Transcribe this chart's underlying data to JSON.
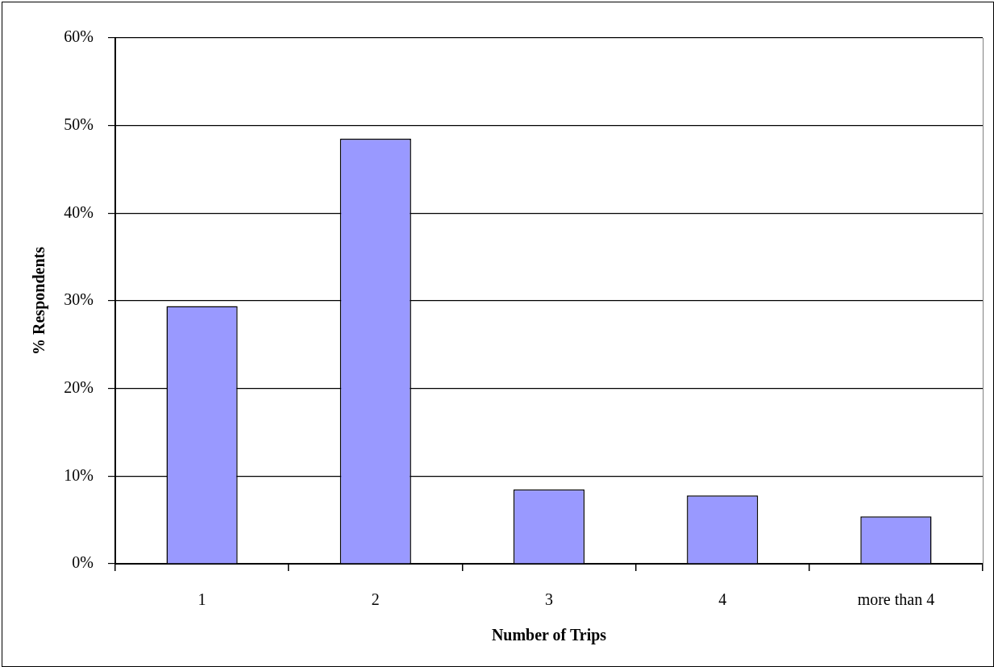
{
  "chart_data": {
    "type": "bar",
    "xlabel": "Number of Trips",
    "ylabel": "% Respondents",
    "categories": [
      "1",
      "2",
      "3",
      "4",
      "more than 4"
    ],
    "values": [
      29.4,
      48.5,
      8.5,
      7.8,
      5.4
    ],
    "color": "#9999ff",
    "ylim": [
      0,
      60
    ],
    "yticks": [
      {
        "value": 0,
        "label": "0%"
      },
      {
        "value": 10,
        "label": "10%"
      },
      {
        "value": 20,
        "label": "20%"
      },
      {
        "value": 30,
        "label": "30%"
      },
      {
        "value": 40,
        "label": "40%"
      },
      {
        "value": 50,
        "label": "50%"
      },
      {
        "value": 60,
        "label": "60%"
      }
    ],
    "grid": "y"
  }
}
